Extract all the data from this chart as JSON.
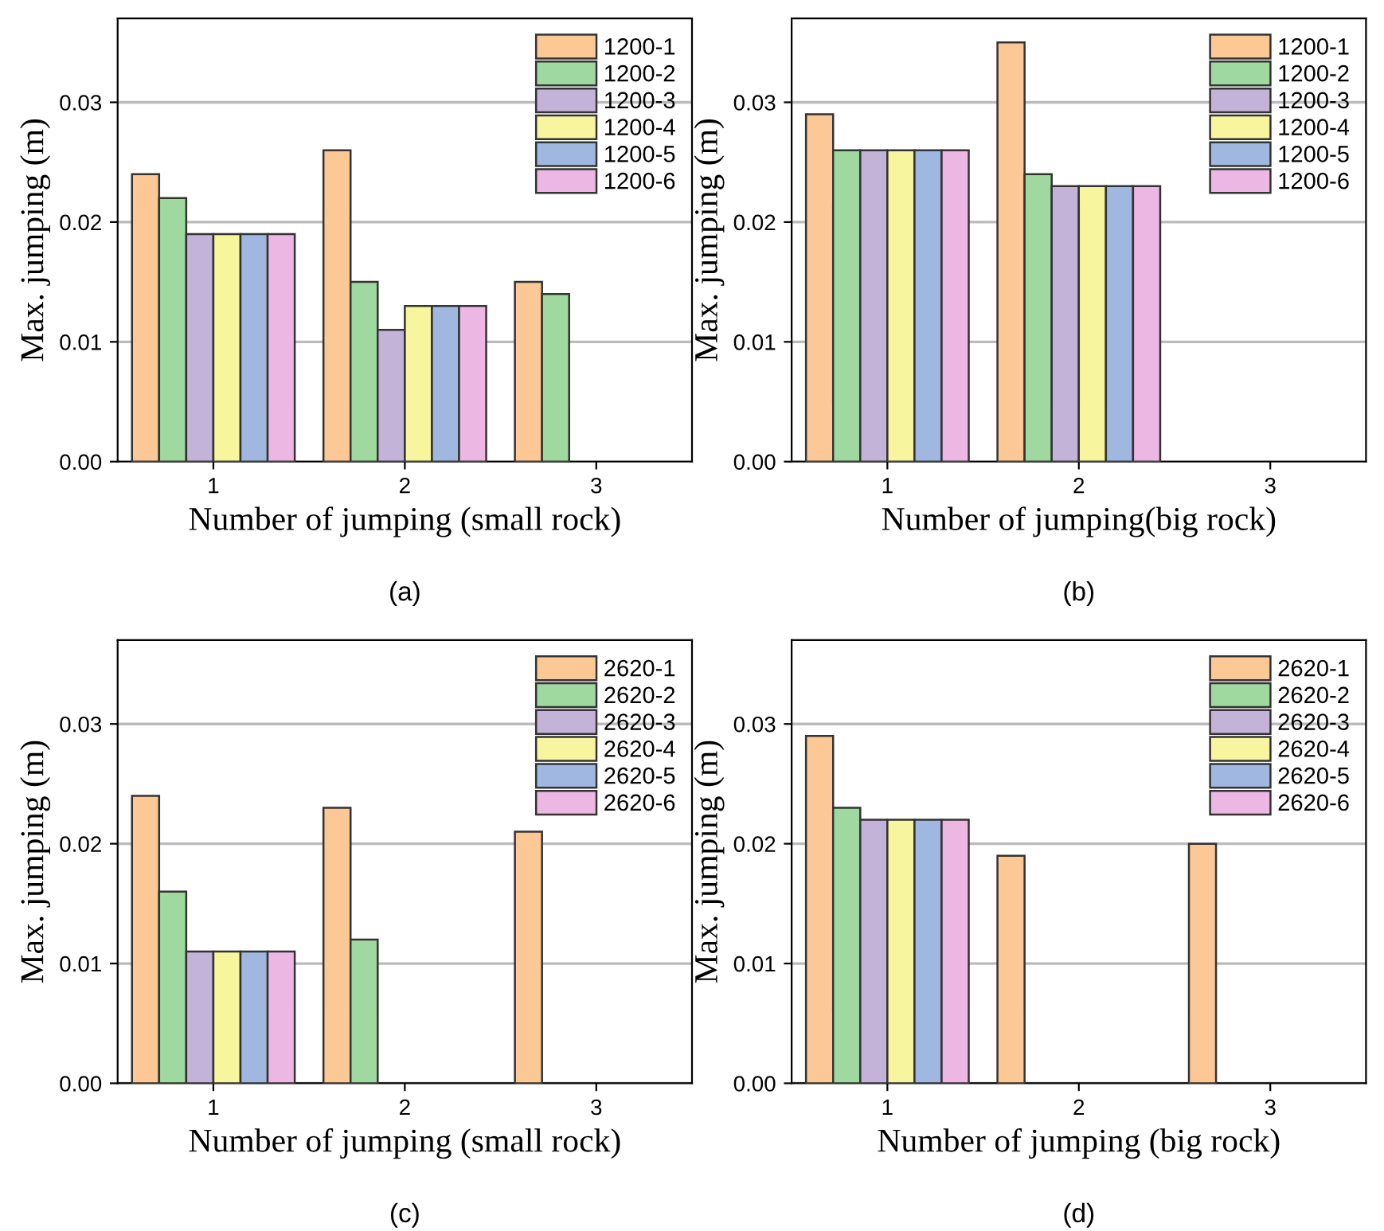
{
  "chart_data": [
    {
      "type": "bar",
      "categories": [
        "1",
        "2",
        "3"
      ],
      "xlabel": "Number of jumping (small rock)",
      "ylabel": "Max. jumping (m)",
      "ylim": [
        0,
        0.037
      ],
      "yticks": [
        {
          "value": 0,
          "label": "0.00"
        },
        {
          "value": 0.01,
          "label": "0.01"
        },
        {
          "value": 0.02,
          "label": "0.02"
        },
        {
          "value": 0.03,
          "label": "0.03"
        }
      ],
      "grid": "y",
      "legend": "top right",
      "annotations": [
        "(a)"
      ],
      "series": [
        {
          "name": "1200-1",
          "color": "#fcc896",
          "values": [
            0.024,
            0.026,
            0.015
          ]
        },
        {
          "name": "1200-2",
          "color": "#a0d9a0",
          "values": [
            0.022,
            0.015,
            0.014
          ]
        },
        {
          "name": "1200-3",
          "color": "#c3b3d8",
          "values": [
            0.019,
            0.011,
            null
          ]
        },
        {
          "name": "1200-4",
          "color": "#f7f59d",
          "values": [
            0.019,
            0.013,
            null
          ]
        },
        {
          "name": "1200-5",
          "color": "#a0b8e0",
          "values": [
            0.019,
            0.013,
            null
          ]
        },
        {
          "name": "1200-6",
          "color": "#ecb8e3",
          "values": [
            0.019,
            0.013,
            null
          ]
        }
      ]
    },
    {
      "type": "bar",
      "categories": [
        "1",
        "2",
        "3"
      ],
      "xlabel": "Number of jumping(big rock)",
      "ylabel": "Max. jumping (m)",
      "ylim": [
        0,
        0.037
      ],
      "yticks": [
        {
          "value": 0,
          "label": "0.00"
        },
        {
          "value": 0.01,
          "label": "0.01"
        },
        {
          "value": 0.02,
          "label": "0.02"
        },
        {
          "value": 0.03,
          "label": "0.03"
        }
      ],
      "grid": "y",
      "legend": "top right",
      "annotations": [
        "(b)"
      ],
      "series": [
        {
          "name": "1200-1",
          "color": "#fcc896",
          "values": [
            0.029,
            0.035,
            null
          ]
        },
        {
          "name": "1200-2",
          "color": "#a0d9a0",
          "values": [
            0.026,
            0.024,
            null
          ]
        },
        {
          "name": "1200-3",
          "color": "#c3b3d8",
          "values": [
            0.026,
            0.023,
            null
          ]
        },
        {
          "name": "1200-4",
          "color": "#f7f59d",
          "values": [
            0.026,
            0.023,
            null
          ]
        },
        {
          "name": "1200-5",
          "color": "#a0b8e0",
          "values": [
            0.026,
            0.023,
            null
          ]
        },
        {
          "name": "1200-6",
          "color": "#ecb8e3",
          "values": [
            0.026,
            0.023,
            null
          ]
        }
      ]
    },
    {
      "type": "bar",
      "categories": [
        "1",
        "2",
        "3"
      ],
      "xlabel": "Number of jumping (small rock)",
      "ylabel": "Max. jumping (m)",
      "ylim": [
        0,
        0.037
      ],
      "yticks": [
        {
          "value": 0,
          "label": "0.00"
        },
        {
          "value": 0.01,
          "label": "0.01"
        },
        {
          "value": 0.02,
          "label": "0.02"
        },
        {
          "value": 0.03,
          "label": "0.03"
        }
      ],
      "grid": "y",
      "legend": "top right",
      "annotations": [
        "(c)"
      ],
      "series": [
        {
          "name": "2620-1",
          "color": "#fcc896",
          "values": [
            0.024,
            0.023,
            0.021
          ]
        },
        {
          "name": "2620-2",
          "color": "#a0d9a0",
          "values": [
            0.016,
            0.012,
            null
          ]
        },
        {
          "name": "2620-3",
          "color": "#c3b3d8",
          "values": [
            0.011,
            null,
            null
          ]
        },
        {
          "name": "2620-4",
          "color": "#f7f59d",
          "values": [
            0.011,
            null,
            null
          ]
        },
        {
          "name": "2620-5",
          "color": "#a0b8e0",
          "values": [
            0.011,
            null,
            null
          ]
        },
        {
          "name": "2620-6",
          "color": "#ecb8e3",
          "values": [
            0.011,
            null,
            null
          ]
        }
      ]
    },
    {
      "type": "bar",
      "categories": [
        "1",
        "2",
        "3"
      ],
      "xlabel": "Number of jumping (big rock)",
      "ylabel": "Max. jumping (m)",
      "ylim": [
        0,
        0.037
      ],
      "yticks": [
        {
          "value": 0,
          "label": "0.00"
        },
        {
          "value": 0.01,
          "label": "0.01"
        },
        {
          "value": 0.02,
          "label": "0.02"
        },
        {
          "value": 0.03,
          "label": "0.03"
        }
      ],
      "grid": "y",
      "legend": "top right",
      "annotations": [
        "(d)"
      ],
      "series": [
        {
          "name": "2620-1",
          "color": "#fcc896",
          "values": [
            0.029,
            0.019,
            0.02
          ]
        },
        {
          "name": "2620-2",
          "color": "#a0d9a0",
          "values": [
            0.023,
            null,
            null
          ]
        },
        {
          "name": "2620-3",
          "color": "#c3b3d8",
          "values": [
            0.022,
            null,
            null
          ]
        },
        {
          "name": "2620-4",
          "color": "#f7f59d",
          "values": [
            0.022,
            null,
            null
          ]
        },
        {
          "name": "2620-5",
          "color": "#a0b8e0",
          "values": [
            0.022,
            null,
            null
          ]
        },
        {
          "name": "2620-6",
          "color": "#ecb8e3",
          "values": [
            0.022,
            null,
            null
          ]
        }
      ]
    }
  ]
}
